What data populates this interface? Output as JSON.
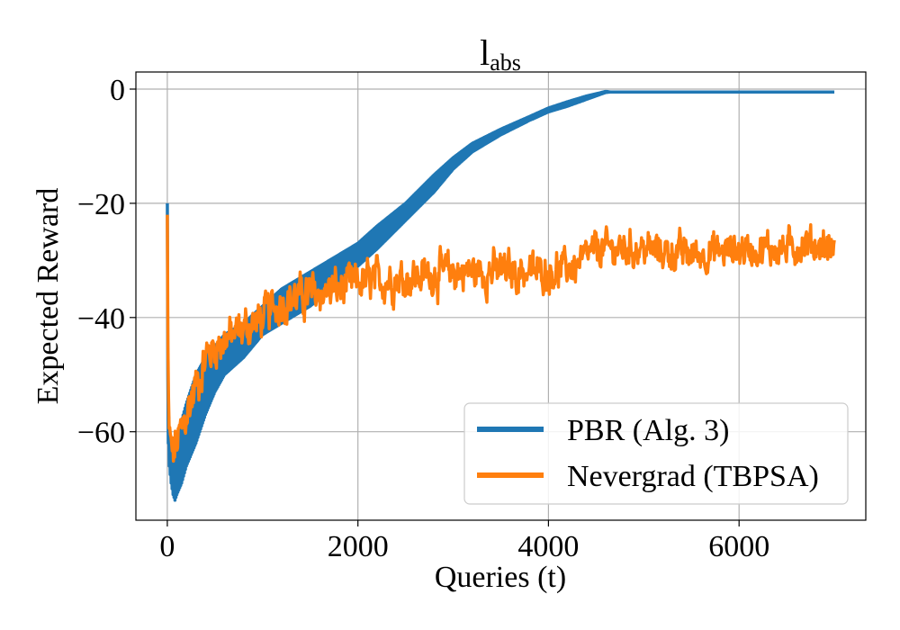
{
  "chart_data": {
    "type": "line",
    "title": "l",
    "title_subscript": "abs",
    "xlabel": "Queries (t)",
    "ylabel": "Expected Reward",
    "xlim": [
      -330,
      7330
    ],
    "ylim": [
      -75.5,
      3.0
    ],
    "xticks": [
      0,
      2000,
      4000,
      6000
    ],
    "xtick_labels": [
      "0",
      "2000",
      "4000",
      "6000"
    ],
    "yticks": [
      0,
      -20,
      -40,
      -60
    ],
    "ytick_labels": [
      "0",
      "−20",
      "−40",
      "−60"
    ],
    "grid": true,
    "legend_position": "lower-right",
    "series": [
      {
        "name": "PBR (Alg. 3)",
        "color": "#1f77b4",
        "x": [
          0,
          5,
          10,
          20,
          40,
          60,
          80,
          100,
          150,
          200,
          300,
          400,
          500,
          600,
          800,
          1000,
          1200,
          1500,
          1800,
          2000,
          2200,
          2500,
          2800,
          3000,
          3200,
          3500,
          3800,
          4000,
          4200,
          4400,
          4600,
          4650,
          5000,
          6000,
          7000
        ],
        "lower": [
          -20,
          -56,
          -62,
          -66,
          -69,
          -71,
          -72,
          -71,
          -69,
          -66,
          -62,
          -57,
          -53,
          -50,
          -47,
          -43,
          -41,
          -38,
          -34,
          -31,
          -28,
          -23,
          -18,
          -14,
          -11,
          -8,
          -5.5,
          -4,
          -3,
          -1.8,
          -0.6,
          -0.5,
          -0.5,
          -0.5,
          -0.5
        ],
        "upper": [
          -16,
          -50,
          -55,
          -60,
          -63,
          -64,
          -64,
          -62,
          -58,
          -55,
          -50,
          -47,
          -45,
          -43,
          -41,
          -38,
          -35,
          -32,
          -29,
          -27,
          -24,
          -20,
          -15,
          -12,
          -9.5,
          -7,
          -4.8,
          -3.3,
          -2.2,
          -1.2,
          -0.4,
          -0.5,
          -0.5,
          -0.5,
          -0.5
        ]
      },
      {
        "name": "Nevergrad (TBPSA)",
        "color": "#ff7f0e",
        "x": [
          0,
          5,
          10,
          20,
          40,
          60,
          80,
          100,
          150,
          200,
          300,
          400,
          500,
          600,
          700,
          800,
          1000,
          1200,
          1500,
          1800,
          2000,
          2500,
          3000,
          3500,
          4000,
          4300,
          4500,
          5000,
          5500,
          6000,
          6500,
          6700,
          7000
        ],
        "y": [
          -22,
          -45,
          -55,
          -60,
          -63,
          -64,
          -63,
          -62,
          -60,
          -57,
          -52,
          -47,
          -45,
          -44,
          -43,
          -42,
          -40,
          -37,
          -36,
          -35,
          -34,
          -33,
          -32,
          -32,
          -32,
          -31,
          -28,
          -28,
          -29,
          -28,
          -28,
          -27,
          -28
        ],
        "noise_amplitude": [
          0,
          4,
          4,
          4,
          4,
          4,
          4,
          4,
          4,
          4,
          4,
          3.5,
          3.5,
          3.5,
          3.5,
          3.5,
          3.5,
          3.5,
          3.5,
          3.5,
          3.5,
          3.5,
          3.5,
          3.5,
          3,
          3,
          3,
          3,
          3,
          3,
          3,
          3,
          3
        ]
      }
    ]
  }
}
